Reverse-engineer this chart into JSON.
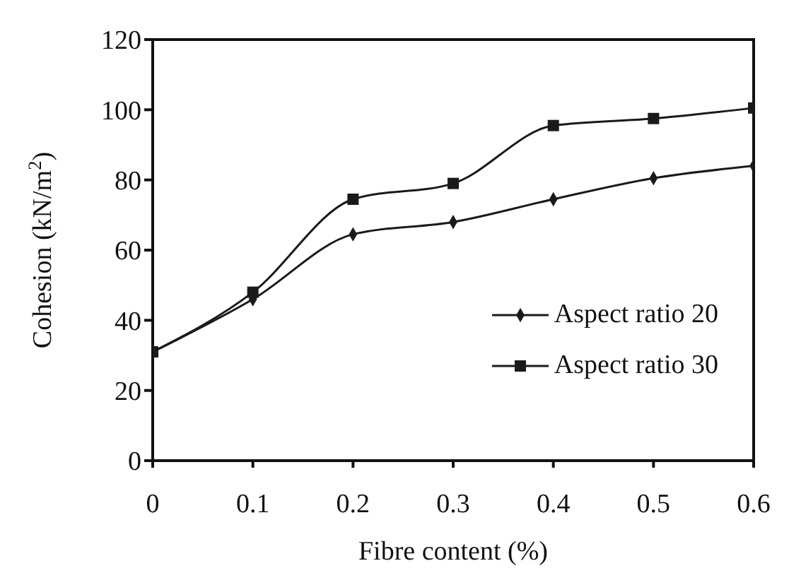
{
  "chart_data": {
    "type": "line",
    "xlabel": "Fibre content (%)",
    "ylabel": "Cohesion (kN/m$^{2}$)",
    "x": [
      0,
      0.1,
      0.2,
      0.3,
      0.4,
      0.5,
      0.6
    ],
    "series": [
      {
        "name": "Aspect ratio 20",
        "color": "#1a1a1a",
        "marker": "diamond",
        "values": [
          31,
          46,
          64.5,
          68,
          74.5,
          80.5,
          84
        ]
      },
      {
        "name": "Aspect ratio 30",
        "color": "#1a1a1a",
        "marker": "square",
        "values": [
          31,
          48,
          74.5,
          79,
          95.5,
          97.5,
          100.5
        ]
      }
    ],
    "xlim": [
      0,
      0.6
    ],
    "xticks": [
      0,
      0.1,
      0.2,
      0.3,
      0.4,
      0.5,
      0.6
    ],
    "ylim": [
      0,
      120
    ],
    "yticks": [
      0,
      20,
      40,
      60,
      80,
      100,
      120
    ],
    "grid": false,
    "legend": "right",
    "line_style": "solid"
  }
}
